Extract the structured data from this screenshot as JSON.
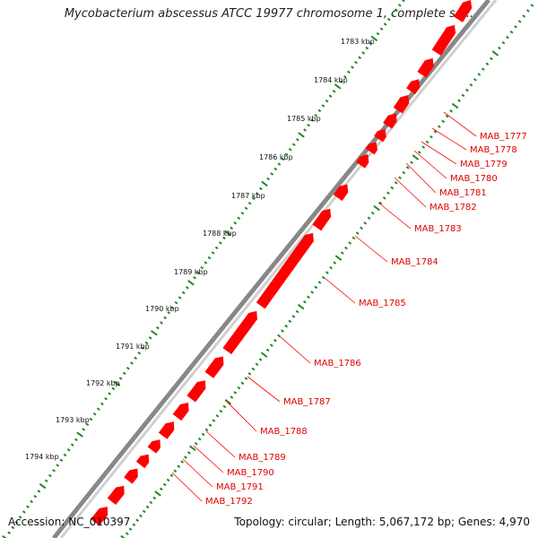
{
  "map": {
    "title": "Mycobacterium abscessus ATCC 19977 chromosome 1, complete se...",
    "accession_text": "Accession: NC_010397",
    "topology_text": "Topology: circular; Length: 5,067,172 bp; Genes: 4,970",
    "tick_labels": [
      "1783 kbp",
      "1784 kbp",
      "1785 kbp",
      "1786 kbp",
      "1787 kbp",
      "1788 kbp",
      "1789 kbp",
      "1790 kbp",
      "1791 kbp",
      "1792 kbp",
      "1793 kbp",
      "1794 kbp"
    ],
    "gene_labels": [
      "MAB_1777",
      "MAB_1778",
      "MAB_1779",
      "MAB_1780",
      "MAB_1781",
      "MAB_1782",
      "MAB_1783",
      "MAB_1784",
      "MAB_1785",
      "MAB_1786",
      "MAB_1787",
      "MAB_1788",
      "MAB_1789",
      "MAB_1790",
      "MAB_1791",
      "MAB_1792"
    ]
  },
  "colors": {
    "gene": "#ff0000",
    "gene_label": "#e00000",
    "backbone": "#888888",
    "tick": "#228822"
  }
}
